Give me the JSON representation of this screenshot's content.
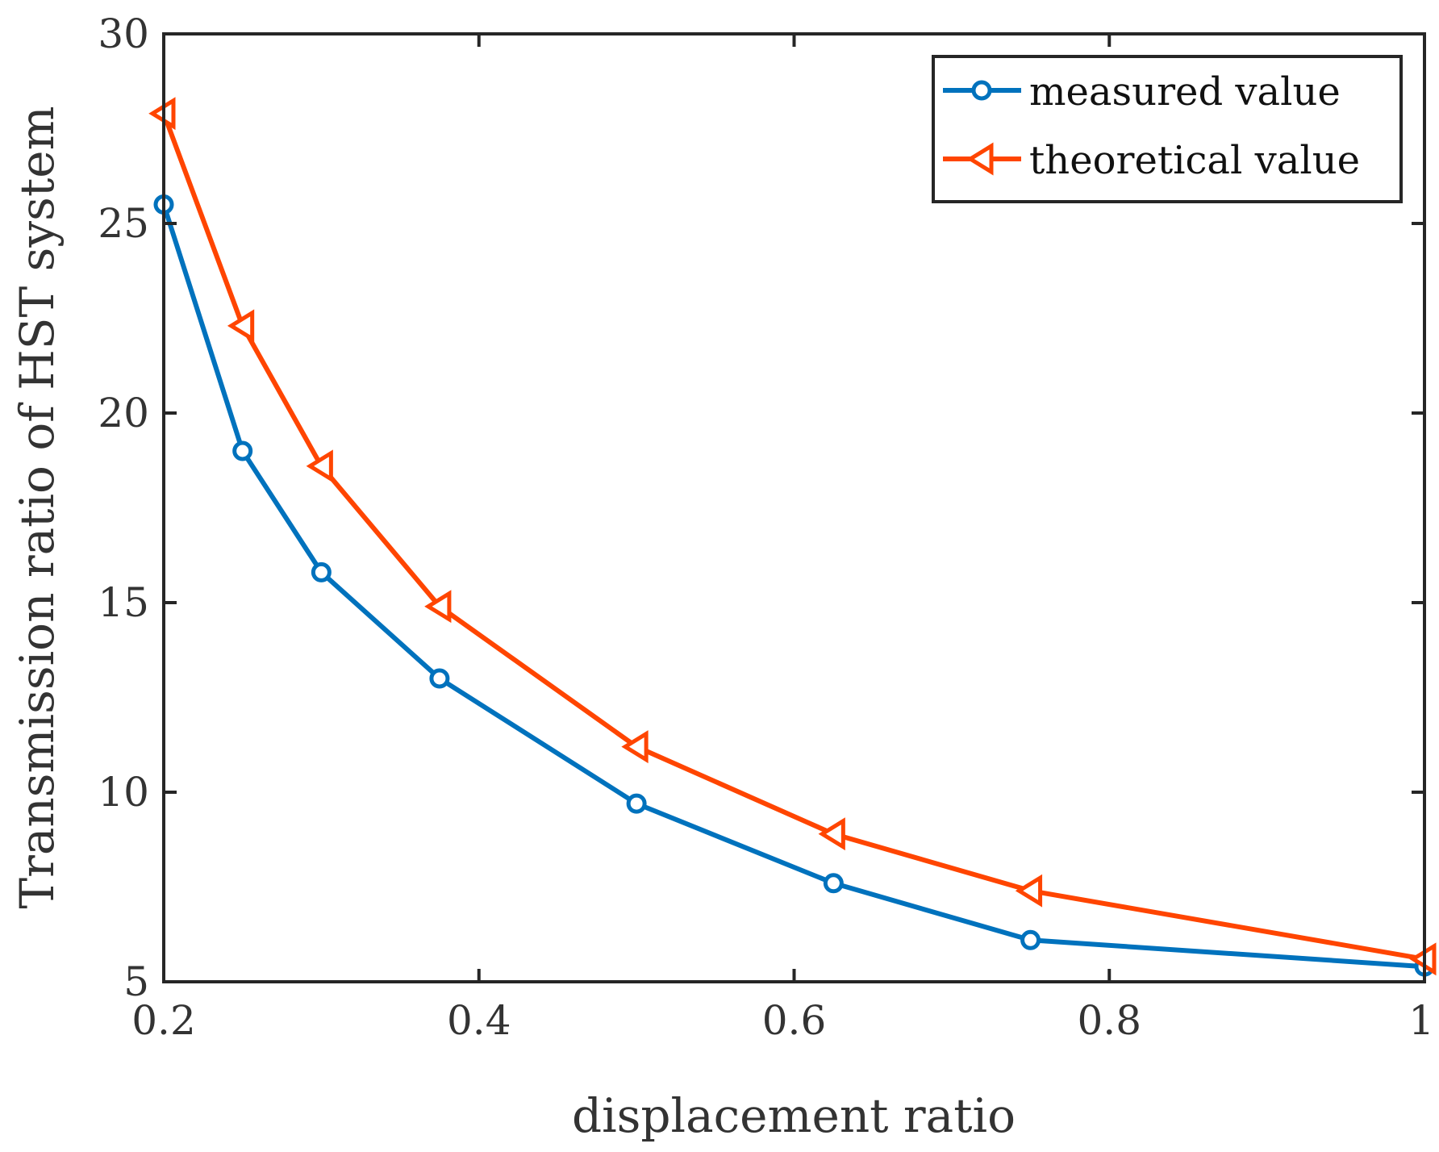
{
  "chart_data": {
    "type": "line",
    "title": "",
    "xlabel": "displacement ratio",
    "ylabel": "Transmission ratio of HST system",
    "xlim": [
      0.2,
      1
    ],
    "ylim": [
      5,
      30
    ],
    "xticks": [
      0.2,
      0.4,
      0.6,
      0.8,
      1
    ],
    "xtick_labels": [
      "0.2",
      "0.4",
      "0.6",
      "0.8",
      "1"
    ],
    "yticks": [
      5,
      10,
      15,
      20,
      25,
      30
    ],
    "ytick_labels": [
      "5",
      "10",
      "15",
      "20",
      "25",
      "30"
    ],
    "grid": false,
    "legend_position": "top-right",
    "x": [
      0.2,
      0.25,
      0.3,
      0.375,
      0.5,
      0.625,
      0.75,
      1
    ],
    "series": [
      {
        "name": "measured value",
        "marker": "circle",
        "color": "#0072BD",
        "values": [
          25.5,
          19.0,
          15.8,
          13.0,
          9.7,
          7.6,
          6.1,
          5.4
        ]
      },
      {
        "name": "theoretical value",
        "marker": "triangle-left",
        "color": "#FF4500",
        "values": [
          27.9,
          22.3,
          18.6,
          14.9,
          11.2,
          8.9,
          7.4,
          5.6
        ]
      }
    ]
  }
}
